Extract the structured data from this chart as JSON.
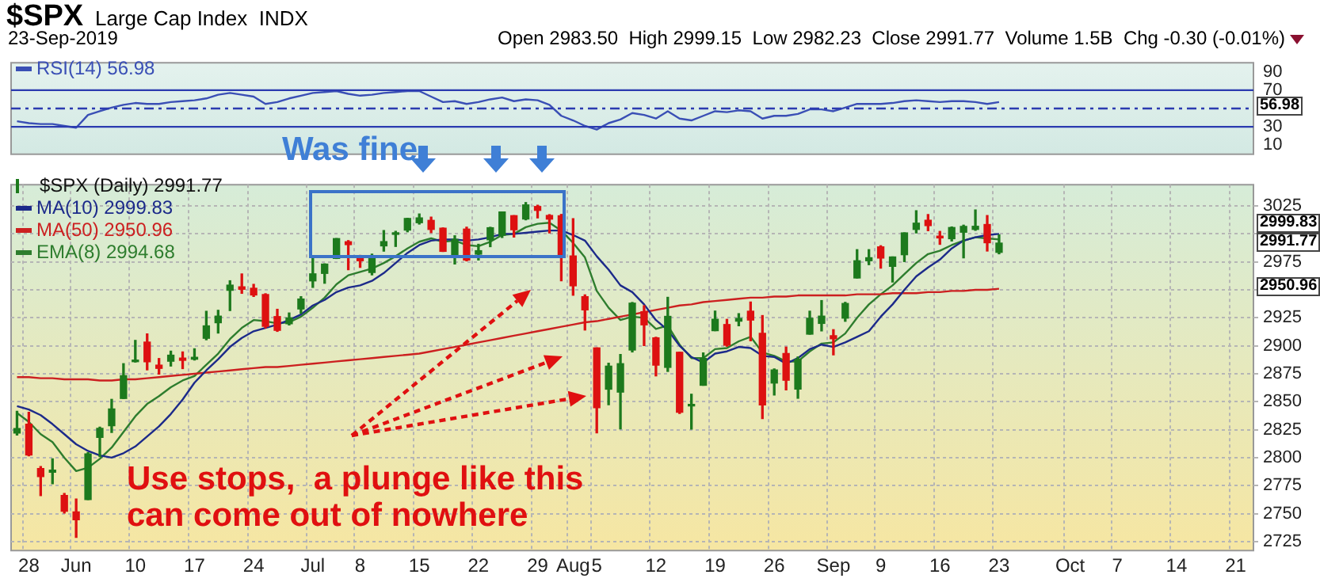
{
  "chart_data": [
    {
      "type": "line",
      "title": "$SPX",
      "subtitle": "Large Cap Index  INDX",
      "annotations": [
        "23-Sep-2019",
        "Open 2983.50  High 2999.15  Low 2982.23  Close 2991.77  Volume 1.5B  Chg -0.30 (-0.01%)",
        "56.98"
      ],
      "categories": [
        null,
        null,
        null,
        null,
        null,
        null,
        null,
        null,
        null,
        null,
        null,
        null,
        null,
        null,
        null,
        null,
        null,
        null,
        null,
        null,
        null,
        null,
        null,
        null,
        null,
        null,
        null,
        null,
        null,
        null,
        null,
        null,
        null,
        null,
        null,
        null,
        null,
        null,
        null,
        null,
        null,
        null,
        null,
        null,
        null,
        null,
        null,
        null,
        null,
        null,
        null,
        null,
        null,
        null,
        null,
        null,
        null,
        null,
        null,
        null,
        null,
        null,
        null,
        null,
        null,
        null,
        null,
        null,
        null,
        null,
        null,
        null,
        null,
        null,
        null,
        null,
        null,
        null,
        null,
        null,
        null,
        null,
        null,
        null,
        null,
        null,
        null,
        null,
        null,
        null,
        null,
        null,
        null,
        null,
        null,
        null,
        null,
        null,
        null,
        null,
        null,
        null,
        null,
        null,
        null
      ],
      "series": [
        {
          "name": "RSI(14) 56.98",
          "color": "#3a4fb5",
          "values": [
            36,
            34,
            33,
            33,
            31,
            29,
            43,
            47,
            51,
            54,
            56,
            55,
            55,
            57,
            58,
            59,
            61,
            65,
            67,
            65,
            63,
            55,
            57,
            61,
            64,
            67,
            68,
            69,
            66,
            64,
            65,
            67,
            68,
            69,
            69,
            63,
            57,
            58,
            55,
            57,
            60,
            62,
            58,
            60,
            59,
            54,
            42,
            37,
            31,
            27,
            34,
            38,
            45,
            43,
            39,
            47,
            39,
            37,
            42,
            47,
            46,
            48,
            47,
            39,
            42,
            42,
            44,
            49,
            49,
            47,
            51,
            55,
            55,
            55,
            56,
            58,
            59,
            58,
            57,
            58,
            58,
            57,
            55,
            57,
            null,
            null,
            null,
            null,
            null,
            null,
            null,
            null,
            null,
            null,
            null,
            null,
            null,
            null,
            null,
            null,
            null,
            null,
            null,
            null,
            null
          ]
        }
      ],
      "ylim": [
        0,
        100
      ],
      "yticks": [
        10,
        30,
        {
          "value": 50,
          "label": null
        },
        70,
        90
      ],
      "ref_lines": [
        {
          "axis": "y",
          "value": 70,
          "color": "#2b3bb0"
        },
        {
          "axis": "y",
          "value": 50,
          "color": "#2b3bb0",
          "line_style": "dashed"
        },
        {
          "axis": "y",
          "value": 30,
          "color": "#2b3bb0"
        }
      ],
      "legend": "top left",
      "tick_labels": "y"
    },
    {
      "type": "candlestick",
      "annotations": [
        "Was fine",
        "Use stops,  a plunge like this can come out of nowhere",
        "2999.83",
        "2991.77",
        "2950.96"
      ],
      "categories": [
        null,
        "28",
        null,
        null,
        null,
        "Jun",
        null,
        null,
        null,
        null,
        "10",
        null,
        null,
        null,
        null,
        "17",
        null,
        null,
        null,
        null,
        "24",
        null,
        null,
        null,
        null,
        "Jul",
        null,
        null,
        null,
        "8",
        null,
        null,
        null,
        null,
        "15",
        null,
        null,
        null,
        null,
        "22",
        null,
        null,
        null,
        null,
        "29",
        null,
        null,
        "Aug",
        null,
        "5",
        null,
        null,
        null,
        null,
        "12",
        null,
        null,
        null,
        null,
        "19",
        null,
        null,
        null,
        null,
        "26",
        null,
        null,
        null,
        null,
        "Sep",
        null,
        null,
        null,
        "9",
        null,
        null,
        null,
        null,
        "16",
        null,
        null,
        null,
        null,
        "23",
        null,
        null,
        null,
        null,
        null,
        "Oct",
        null,
        null,
        null,
        "7",
        null,
        null,
        null,
        null,
        "14",
        null,
        null,
        null,
        null,
        "21",
        null
      ],
      "series": [
        {
          "name": "$SPX (Daily) 2991.77",
          "type": "candlestick",
          "ohlc": [
            [
              2822.0,
              2841.4,
              2820.2,
              2826.1
            ],
            [
              2830.0,
              2840.5,
              2801.6,
              2802.4
            ],
            [
              2790.3,
              2792.0,
              2766.1,
              2783.0
            ],
            [
              2786.9,
              2799.0,
              2776.7,
              2788.9
            ],
            [
              2766.2,
              2768.0,
              2750.5,
              2752.1
            ],
            [
              2751.5,
              2763.1,
              2728.8,
              2744.5
            ],
            [
              2762.6,
              2804.5,
              2762.6,
              2803.3
            ],
            [
              2818.1,
              2827.3,
              2800.9,
              2826.2
            ],
            [
              2828.5,
              2852.1,
              2822.5,
              2843.5
            ],
            [
              2852.9,
              2884.0,
              2852.9,
              2873.3
            ],
            [
              2885.8,
              2904.8,
              2885.5,
              2886.7
            ],
            [
              2903.3,
              2910.6,
              2878.5,
              2885.7
            ],
            [
              2882.7,
              2888.6,
              2874.7,
              2879.8
            ],
            [
              2886.2,
              2895.2,
              2881.9,
              2891.6
            ],
            [
              2889.0,
              2894.5,
              2879.6,
              2887.0
            ],
            [
              2888.0,
              2897.3,
              2887.3,
              2889.7
            ],
            [
              2906.7,
              2930.8,
              2905.4,
              2917.8
            ],
            [
              2920.6,
              2931.7,
              2911.4,
              2926.5
            ],
            [
              2949.6,
              2958.1,
              2931.5,
              2954.2
            ],
            [
              2952.7,
              2964.2,
              2946.9,
              2950.5
            ],
            [
              2951.4,
              2954.9,
              2944.1,
              2945.4
            ],
            [
              2945.8,
              2946.5,
              2916.0,
              2917.4
            ],
            [
              2926.1,
              2932.6,
              2912.9,
              2913.8
            ],
            [
              2919.7,
              2929.3,
              2918.6,
              2924.9
            ],
            [
              2932.9,
              2943.9,
              2929.1,
              2941.8
            ],
            [
              2958.0,
              2977.9,
              2952.2,
              2964.3
            ],
            [
              2964.7,
              2973.2,
              2955.9,
              2973.0
            ],
            [
              2978.1,
              2995.8,
              2978.0,
              2995.8
            ],
            [
              2993.0,
              2994.0,
              2968.0,
              2990.4
            ],
            [
              2979.8,
              2980.8,
              2970.1,
              2976.0
            ],
            [
              2965.5,
              2981.9,
              2963.4,
              2979.6
            ],
            [
              2989.3,
              3003.0,
              2984.6,
              2993.1
            ],
            [
              2999.6,
              3002.3,
              2988.8,
              2999.9
            ],
            [
              3003.4,
              3013.9,
              3001.9,
              3013.8
            ],
            [
              3010.0,
              3017.8,
              3008.8,
              3014.3
            ],
            [
              3012.1,
              3015.0,
              3001.2,
              3004.0
            ],
            [
              3005.1,
              3005.3,
              2984.3,
              2984.4
            ],
            [
              2978.9,
              2998.3,
              2973.1,
              2995.1
            ],
            [
              3004.3,
              3006.0,
              2975.9,
              2976.6
            ],
            [
              2981.9,
              2990.7,
              2976.7,
              2985.0
            ],
            [
              2994.7,
              3005.9,
              2988.6,
              3005.5
            ],
            [
              2998.8,
              3019.6,
              2996.8,
              3019.6
            ],
            [
              3016.3,
              3016.3,
              2997.2,
              3003.7
            ],
            [
              3013.3,
              3028.0,
              3012.6,
              3025.9
            ],
            [
              3024.5,
              3025.6,
              3014.3,
              3021.0
            ],
            [
              3016.5,
              3017.2,
              3000.9,
              3013.2
            ],
            [
              3016.2,
              3017.4,
              2958.1,
              2980.4
            ],
            [
              2980.3,
              3013.6,
              2945.2,
              2953.6
            ],
            [
              2943.9,
              2945.5,
              2914.1,
              2932.1
            ],
            [
              2898.1,
              2898.1,
              2822.1,
              2844.7
            ],
            [
              2861.2,
              2884.4,
              2847.4,
              2881.8
            ],
            [
              2858.6,
              2892.2,
              2825.7,
              2884.0
            ],
            [
              2896.2,
              2938.7,
              2894.5,
              2938.1
            ],
            [
              2930.5,
              2935.8,
              2900.2,
              2918.7
            ],
            [
              2907.1,
              2907.6,
              2873.1,
              2882.7
            ],
            [
              2880.7,
              2943.3,
              2877.1,
              2926.3
            ],
            [
              2894.2,
              2894.2,
              2839.6,
              2840.6
            ],
            [
              2846.2,
              2856.7,
              2825.5,
              2847.6
            ],
            [
              2864.7,
              2893.6,
              2864.7,
              2888.7
            ],
            [
              2913.5,
              2931.0,
              2913.5,
              2923.7
            ],
            [
              2919.0,
              2923.6,
              2899.6,
              2900.5
            ],
            [
              2922.0,
              2928.7,
              2917.9,
              2924.4
            ],
            [
              2930.9,
              2939.1,
              2904.5,
              2923.0
            ],
            [
              2911.1,
              2927.0,
              2835.0,
              2847.1
            ],
            [
              2866.7,
              2879.3,
              2856.0,
              2878.4
            ],
            [
              2893.1,
              2898.8,
              2860.6,
              2869.2
            ],
            [
              2861.3,
              2890.0,
              2853.1,
              2887.9
            ],
            [
              2910.4,
              2930.9,
              2910.4,
              2924.6
            ],
            [
              2920.0,
              2940.4,
              2913.3,
              2926.5
            ],
            [
              2909.0,
              2914.4,
              2891.9,
              2906.3
            ],
            [
              2924.7,
              2938.8,
              2921.9,
              2937.8
            ],
            [
              2960.6,
              2985.9,
              2960.6,
              2976.0
            ],
            [
              2976.0,
              2985.9,
              2972.5,
              2978.7
            ],
            [
              2988.4,
              2989.4,
              2969.4,
              2978.4
            ],
            [
              2971.0,
              2979.4,
              2957.0,
              2979.4
            ],
            [
              2981.4,
              3000.9,
              2975.3,
              3000.9
            ],
            [
              3004.0,
              3020.7,
              3000.9,
              3009.6
            ],
            [
              3012.2,
              3017.3,
              3002.9,
              3007.4
            ],
            [
              2996.4,
              3002.2,
              2990.7,
              2998.0
            ],
            [
              2995.7,
              3006.2,
              2993.7,
              3005.7
            ],
            [
              3001.5,
              3007.8,
              2978.6,
              3006.7
            ],
            [
              3004.0,
              3021.4,
              3003.2,
              3006.8
            ],
            [
              3008.4,
              3016.4,
              2984.7,
              2992.1
            ],
            [
              2983.5,
              2999.15,
              2982.23,
              2991.77
            ],
            null,
            null,
            null,
            null,
            null,
            null,
            null,
            null,
            null,
            null,
            null,
            null,
            null,
            null,
            null,
            null,
            null,
            null,
            null,
            null,
            null
          ],
          "colors": [
            "#1d7a1d",
            "#dd1111",
            "#dd1111",
            "#1d7a1d",
            "#dd1111",
            "#dd1111",
            "#1d7a1d",
            "#1d7a1d",
            "#1d7a1d",
            "#1d7a1d",
            "#1d7a1d",
            "#dd1111",
            "#dd1111",
            "#1d7a1d",
            "#dd1111",
            "#1d7a1d",
            "#1d7a1d",
            "#1d7a1d",
            "#1d7a1d",
            "#dd1111",
            "#dd1111",
            "#dd1111",
            "#dd1111",
            "#1d7a1d",
            "#1d7a1d",
            "#1d7a1d",
            "#1d7a1d",
            "#1d7a1d",
            "#dd1111",
            "#dd1111",
            "#1d7a1d",
            "#1d7a1d",
            "#1d7a1d",
            "#1d7a1d",
            "#1d7a1d",
            "#dd1111",
            "#dd1111",
            "#1d7a1d",
            "#dd1111",
            "#1d7a1d",
            "#1d7a1d",
            "#1d7a1d",
            "#dd1111",
            "#1d7a1d",
            "#dd1111",
            "#dd1111",
            "#dd1111",
            "#dd1111",
            "#dd1111",
            "#dd1111",
            "#1d7a1d",
            "#1d7a1d",
            "#1d7a1d",
            "#dd1111",
            "#dd1111",
            "#1d7a1d",
            "#dd1111",
            "#1d7a1d",
            "#1d7a1d",
            "#1d7a1d",
            "#dd1111",
            "#1d7a1d",
            "#dd1111",
            "#dd1111",
            "#1d7a1d",
            "#dd1111",
            "#1d7a1d",
            "#1d7a1d",
            "#1d7a1d",
            "#dd1111",
            "#1d7a1d",
            "#1d7a1d",
            "#1d7a1d",
            "#dd1111",
            "#1d7a1d",
            "#1d7a1d",
            "#1d7a1d",
            "#dd1111",
            "#dd1111",
            "#1d7a1d",
            "#1d7a1d",
            "#1d7a1d",
            "#dd1111",
            "#1d7a1d",
            null,
            null,
            null,
            null,
            null,
            null,
            null,
            null,
            null,
            null,
            null,
            null,
            null,
            null,
            null,
            null,
            null,
            null,
            null,
            null,
            null
          ]
        },
        {
          "name": "MA(10) 2999.83",
          "type": "line",
          "color": "#1c2a8a",
          "values": [
            2846,
            2843,
            2838,
            2830,
            2821,
            2812,
            2806,
            2802,
            2800,
            2804,
            2810,
            2819,
            2828,
            2839,
            2852,
            2867,
            2878,
            2888,
            2899,
            2907,
            2913,
            2916,
            2919,
            2923,
            2928,
            2936,
            2941,
            2948,
            2952,
            2954,
            2958,
            2965,
            2974,
            2983,
            2990,
            2994,
            2995,
            2995,
            2994,
            2995,
            2997,
            3000,
            3000,
            3001,
            3002,
            3003,
            3003,
            2999,
            2994,
            2980,
            2968,
            2954,
            2948,
            2937,
            2923,
            2914,
            2900,
            2890,
            2885,
            2893,
            2895,
            2899,
            2898,
            2891,
            2890,
            2884,
            2889,
            2897,
            2901,
            2899,
            2903,
            2908,
            2913,
            2926,
            2937,
            2950,
            2962,
            2970,
            2977,
            2987,
            2994,
            2997,
            2999,
            3000,
            null,
            null,
            null,
            null,
            null,
            null,
            null,
            null,
            null,
            null,
            null,
            null,
            null,
            null,
            null,
            null,
            null,
            null,
            null,
            null,
            null
          ]
        },
        {
          "name": "MA(50) 2950.96",
          "type": "line",
          "color": "#cc2020",
          "values": [
            2872,
            2872,
            2871,
            2871,
            2870,
            2870,
            2870,
            2869,
            2869,
            2870,
            2870,
            2871,
            2872,
            2873,
            2874,
            2875,
            2876,
            2877,
            2878,
            2879,
            2880,
            2881,
            2881,
            2882,
            2883,
            2884,
            2885,
            2886,
            2887,
            2888,
            2889,
            2890,
            2891,
            2892,
            2893,
            2895,
            2897,
            2899,
            2901,
            2903,
            2905,
            2907,
            2909,
            2911,
            2913,
            2915,
            2917,
            2919,
            2921,
            2922,
            2924,
            2926,
            2928,
            2930,
            2932,
            2934,
            2936,
            2937,
            2939,
            2940,
            2941,
            2942,
            2943,
            2943,
            2944,
            2944,
            2945,
            2945,
            2945,
            2945,
            2945,
            2946,
            2946,
            2946,
            2947,
            2947,
            2947,
            2948,
            2948,
            2949,
            2949,
            2950,
            2950,
            2951,
            null,
            null,
            null,
            null,
            null,
            null,
            null,
            null,
            null,
            null,
            null,
            null,
            null,
            null,
            null,
            null,
            null,
            null,
            null,
            null,
            null
          ]
        },
        {
          "name": "EMA(8) 2994.68",
          "type": "line",
          "color": "#2e7d2e",
          "values": [
            2840,
            2832,
            2821,
            2814,
            2800,
            2788,
            2791,
            2799,
            2809,
            2823,
            2837,
            2848,
            2855,
            2863,
            2869,
            2873,
            2883,
            2893,
            2906,
            2916,
            2923,
            2922,
            2920,
            2921,
            2926,
            2934,
            2943,
            2955,
            2963,
            2966,
            2969,
            2974,
            2980,
            2987,
            2993,
            2996,
            2993,
            2994,
            2990,
            2989,
            2993,
            2999,
            3000,
            3006,
            3009,
            3010,
            3003,
            2992,
            2979,
            2949,
            2934,
            2923,
            2926,
            2925,
            2915,
            2918,
            2901,
            2889,
            2889,
            2897,
            2898,
            2904,
            2908,
            2894,
            2891,
            2886,
            2886,
            2895,
            2902,
            2903,
            2911,
            2925,
            2937,
            2946,
            2954,
            2964,
            2974,
            2982,
            2985,
            2990,
            2994,
            2997,
            2996,
            2995,
            null,
            null,
            null,
            null,
            null,
            null,
            null,
            null,
            null,
            null,
            null,
            null,
            null,
            null,
            null,
            null,
            null,
            null,
            null,
            null,
            null
          ]
        }
      ],
      "ylim": [
        2717,
        3044
      ],
      "yticks": [
        2725,
        2750,
        2775,
        2800,
        2825,
        2850,
        2875,
        2900,
        2925,
        {
          "value": 2950,
          "label": null
        },
        2975,
        {
          "value": 3000,
          "label": null
        },
        3025
      ],
      "grid": true,
      "legend": "top left"
    }
  ]
}
